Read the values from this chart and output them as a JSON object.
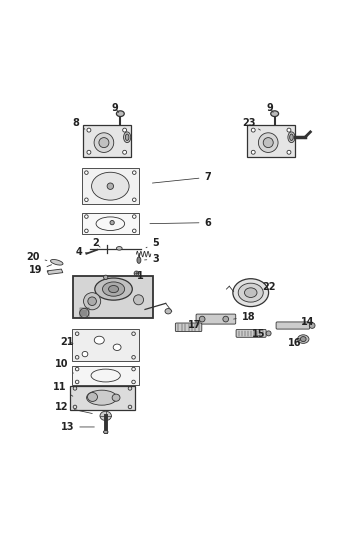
{
  "title": "",
  "background_color": "#ffffff",
  "fig_width": 3.6,
  "fig_height": 5.51,
  "dpi": 100,
  "line_color": "#333333",
  "label_color": "#222222",
  "label_fontsize": 7
}
